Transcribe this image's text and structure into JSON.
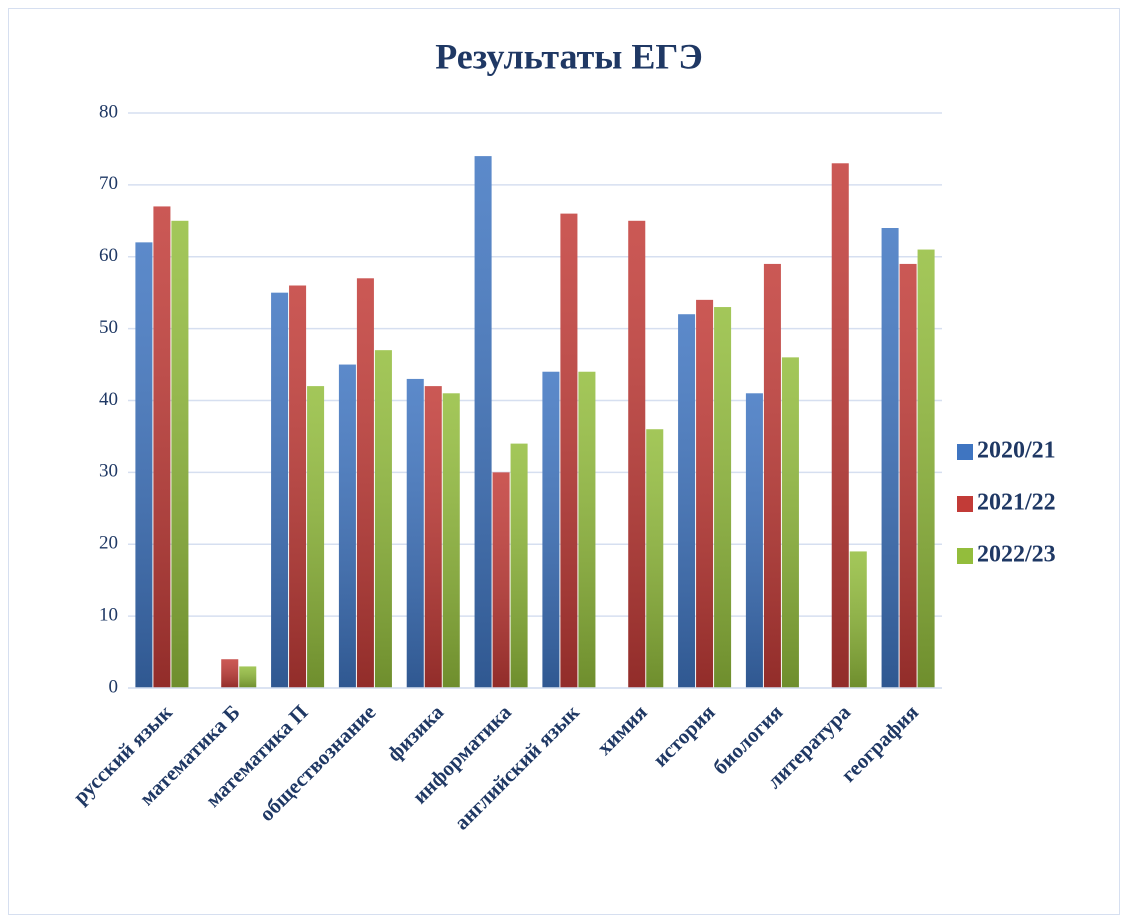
{
  "chart_data": {
    "type": "bar",
    "title": "Результаты ЕГЭ",
    "categories": [
      "русский язык",
      "математика Б",
      "математика П",
      "обществознание",
      "физика",
      "информатика",
      "английский язык",
      "химия",
      "история",
      "биология",
      "литература",
      "география"
    ],
    "series": [
      {
        "name": "2020/21",
        "color": "#3f75c1",
        "values": [
          62,
          null,
          55,
          45,
          43,
          74,
          44,
          null,
          52,
          41,
          null,
          64
        ]
      },
      {
        "name": "2021/22",
        "color": "#c23b37",
        "values": [
          67,
          4,
          56,
          57,
          42,
          30,
          66,
          65,
          54,
          59,
          73,
          59
        ]
      },
      {
        "name": "2022/23",
        "color": "#93bd3c",
        "values": [
          65,
          3,
          42,
          47,
          41,
          34,
          44,
          36,
          53,
          46,
          19,
          61
        ]
      }
    ],
    "ylim": [
      0,
      80
    ],
    "yticks": [
      0,
      10,
      20,
      30,
      40,
      50,
      60,
      70,
      80
    ],
    "grid": true,
    "legend": "right"
  }
}
